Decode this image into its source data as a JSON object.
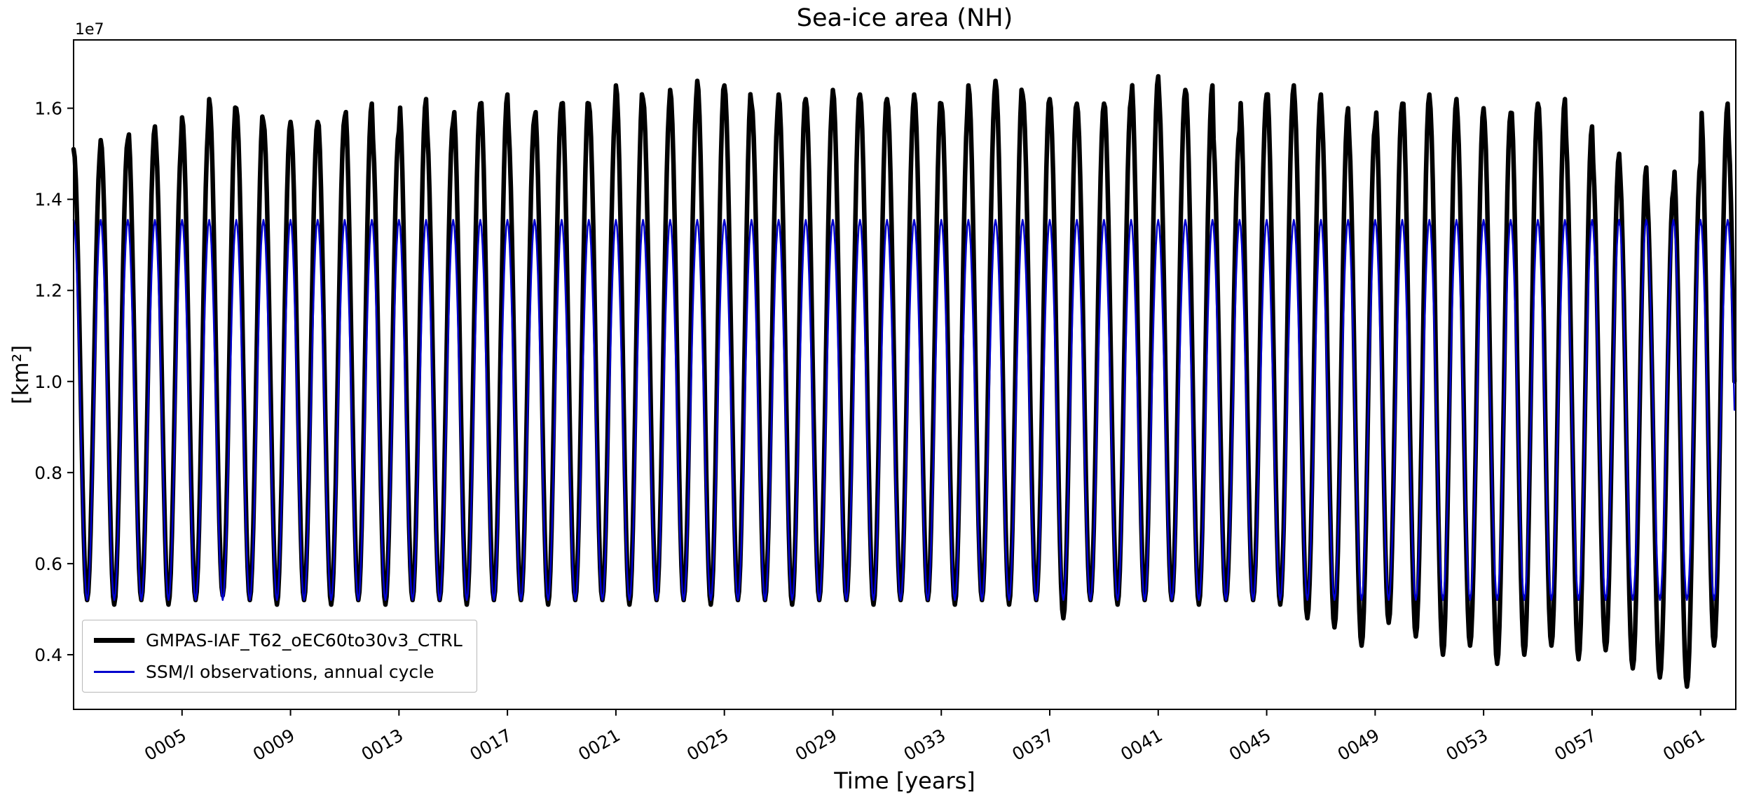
{
  "chart_data": {
    "type": "line",
    "title": "Sea-ice area (NH)",
    "xlabel": "Time [years]",
    "ylabel": "[km²]",
    "y_offset_text": "1e7",
    "units": "1e7 km^2",
    "grid": false,
    "legend_position": "lower left",
    "xlim": [
      1,
      62.3
    ],
    "x_end": 62.25,
    "ylim": [
      0.28,
      1.75
    ],
    "yticks": [
      0.4,
      0.6,
      0.8,
      1.0,
      1.2,
      1.4,
      1.6
    ],
    "ytick_labels": [
      "0.4",
      "0.6",
      "0.8",
      "1.0",
      "1.2",
      "1.4",
      "1.6"
    ],
    "xticks": [
      5,
      9,
      13,
      17,
      21,
      25,
      29,
      33,
      37,
      41,
      45,
      49,
      53,
      57,
      61
    ],
    "xtick_labels": [
      "0005",
      "0009",
      "0013",
      "0017",
      "0021",
      "0025",
      "0029",
      "0033",
      "0037",
      "0041",
      "0045",
      "0049",
      "0053",
      "0057",
      "0061"
    ],
    "samples_per_year": 24,
    "series": [
      {
        "name": "GMPAS-IAF_T62_oEC60to30v3_CTRL",
        "color": "#000000",
        "linewidth": 6.5,
        "annual_max": [
          1.51,
          1.53,
          1.56,
          1.54,
          1.58,
          1.62,
          1.6,
          1.57,
          1.57,
          1.58,
          1.61,
          1.55,
          1.62,
          1.57,
          1.61,
          1.63,
          1.58,
          1.61,
          1.63,
          1.61,
          1.65,
          1.62,
          1.64,
          1.66,
          1.65,
          1.61,
          1.63,
          1.62,
          1.64,
          1.63,
          1.62,
          1.63,
          1.61,
          1.65,
          1.66,
          1.63,
          1.62,
          1.61,
          1.62,
          1.67,
          1.64,
          1.65,
          1.55,
          1.63,
          1.65,
          1.63,
          1.6,
          1.56,
          1.61,
          1.63,
          1.62,
          1.6,
          1.59,
          1.61,
          1.62,
          1.56,
          1.5,
          1.47,
          1.42,
          1.48,
          1.61,
          1.55
        ],
        "annual_min": [
          0.52,
          0.51,
          0.52,
          0.51,
          0.52,
          0.53,
          0.52,
          0.51,
          0.52,
          0.51,
          0.52,
          0.51,
          0.52,
          0.52,
          0.51,
          0.52,
          0.52,
          0.51,
          0.52,
          0.52,
          0.51,
          0.52,
          0.52,
          0.51,
          0.52,
          0.52,
          0.51,
          0.52,
          0.52,
          0.51,
          0.52,
          0.52,
          0.51,
          0.52,
          0.51,
          0.52,
          0.48,
          0.52,
          0.51,
          0.52,
          0.52,
          0.51,
          0.52,
          0.52,
          0.51,
          0.48,
          0.46,
          0.42,
          0.47,
          0.44,
          0.4,
          0.42,
          0.38,
          0.4,
          0.42,
          0.39,
          0.41,
          0.37,
          0.35,
          0.33,
          0.42,
          0.45
        ]
      },
      {
        "name": "SSM/I observations, annual cycle",
        "color": "#0000cd",
        "linewidth": 2.5,
        "max": 1.355,
        "min": 0.52
      }
    ]
  }
}
